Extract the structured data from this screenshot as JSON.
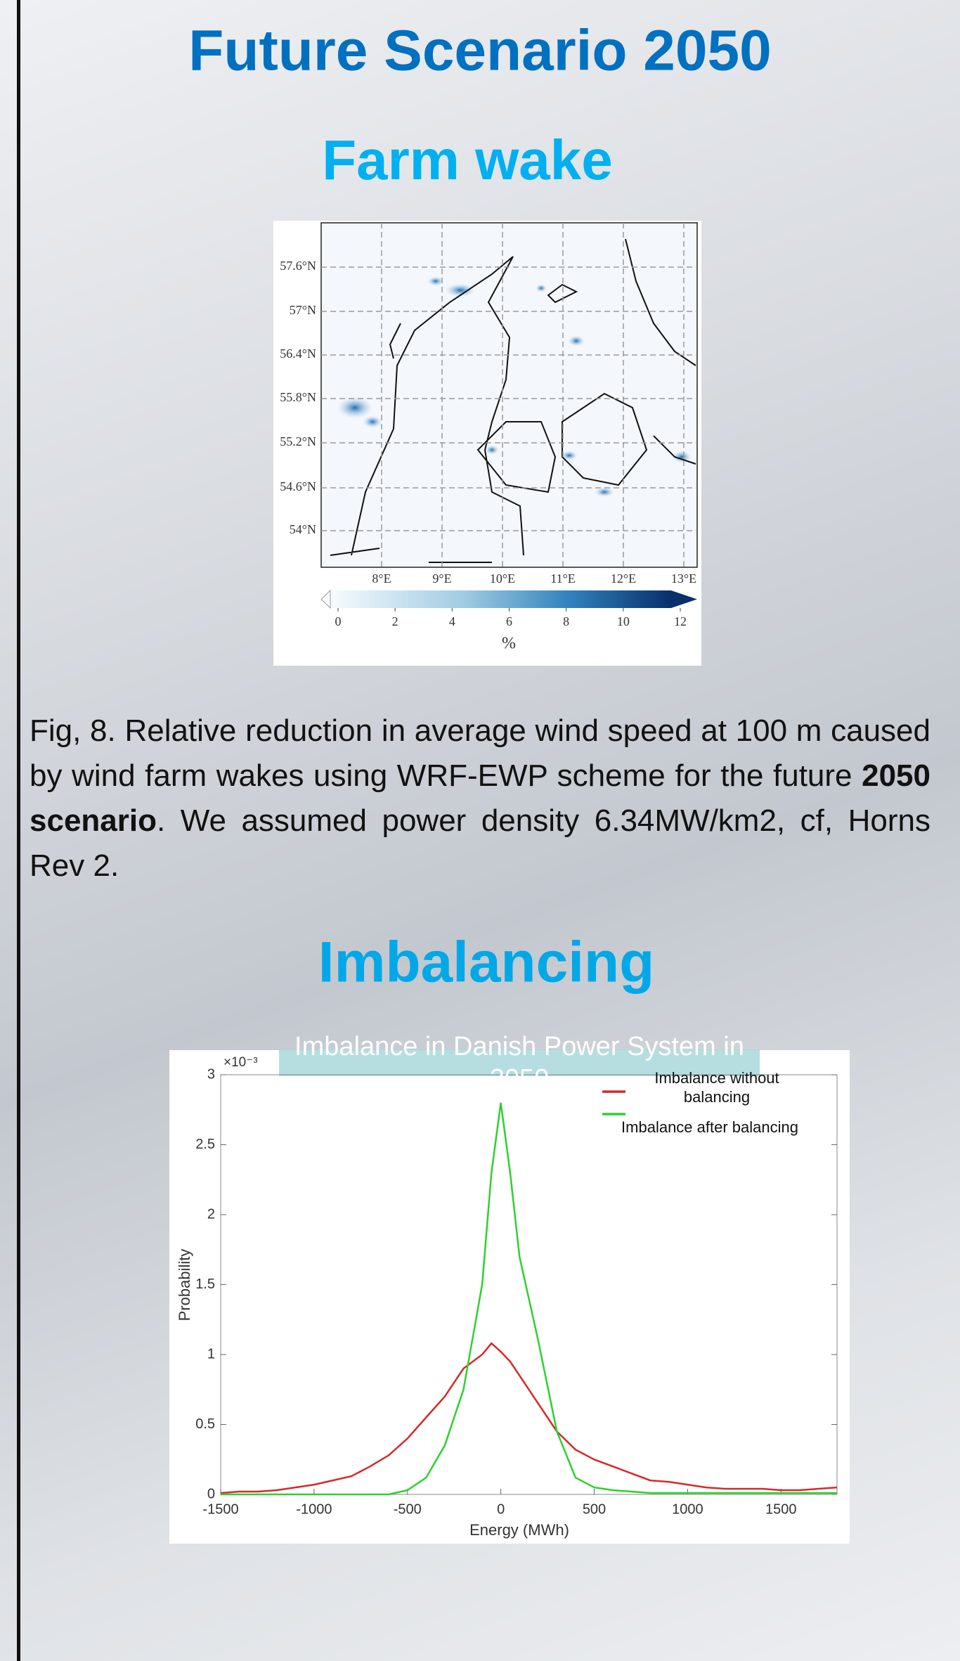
{
  "header": {
    "title": "Future Scenario 2050"
  },
  "section1": {
    "heading": "Farm wake"
  },
  "map": {
    "lat_labels": [
      "57.6°N",
      "57°N",
      "56.4°N",
      "55.8°N",
      "55.2°N",
      "54.6°N",
      "54°N"
    ],
    "lon_labels": [
      "8°E",
      "9°E",
      "10°E",
      "11°E",
      "12°E",
      "13°E"
    ],
    "colorbar_ticks": [
      0,
      2,
      4,
      6,
      8,
      10,
      12
    ],
    "colorbar_label": "%"
  },
  "caption": {
    "parts": [
      "Fig, 8. Relative reduction in average wind speed at 100 m caused by wind farm wakes using WRF-EWP scheme for the future ",
      "2050 scenario",
      ". We assumed power density 6.34MW/km2, cf, Horns Rev 2."
    ]
  },
  "section2": {
    "heading": "Imbalancing"
  },
  "chart_data": {
    "type": "line",
    "title": "Imbalance in Danish Power System in 2050",
    "x_label": "Energy (MWh)",
    "y_label": "Probability",
    "y_multiplier": "×10⁻³",
    "x": [
      -1500,
      -1400,
      -1300,
      -1200,
      -1100,
      -1000,
      -900,
      -800,
      -700,
      -600,
      -500,
      -400,
      -300,
      -200,
      -100,
      -50,
      0,
      50,
      100,
      200,
      300,
      400,
      500,
      600,
      700,
      800,
      900,
      1000,
      1100,
      1200,
      1300,
      1400,
      1500,
      1600,
      1700,
      1800
    ],
    "series": [
      {
        "name": "Imbalance without balancing",
        "color": "#d42a2a",
        "values": [
          0.01,
          0.02,
          0.02,
          0.03,
          0.05,
          0.07,
          0.1,
          0.13,
          0.2,
          0.28,
          0.4,
          0.55,
          0.7,
          0.9,
          1.0,
          1.08,
          1.02,
          0.95,
          0.85,
          0.65,
          0.45,
          0.32,
          0.25,
          0.2,
          0.15,
          0.1,
          0.09,
          0.07,
          0.05,
          0.04,
          0.04,
          0.04,
          0.03,
          0.03,
          0.04,
          0.05
        ]
      },
      {
        "name": "Imbalance after balancing",
        "color": "#2ed12e",
        "values": [
          0,
          0,
          0,
          0,
          0,
          0,
          0,
          0,
          0,
          0,
          0.03,
          0.12,
          0.35,
          0.75,
          1.5,
          2.3,
          2.8,
          2.3,
          1.7,
          1.1,
          0.45,
          0.12,
          0.05,
          0.03,
          0.02,
          0.01,
          0.01,
          0.01,
          0.01,
          0.01,
          0.01,
          0.01,
          0.01,
          0.01,
          0.01,
          0.01
        ]
      }
    ],
    "xlim": [
      -1500,
      1800
    ],
    "xticks": [
      -1500,
      -1000,
      -500,
      0,
      500,
      1000,
      1500
    ],
    "ylim": [
      0,
      3
    ],
    "yticks": [
      0,
      0.5,
      1,
      1.5,
      2,
      2.5,
      3
    ]
  }
}
